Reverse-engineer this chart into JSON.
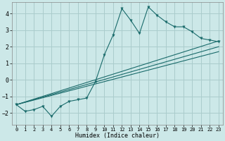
{
  "xlabel": "Humidex (Indice chaleur)",
  "ylabel": "",
  "bg_color": "#cce8e8",
  "grid_color": "#aacccc",
  "line_color": "#1a6b6b",
  "xlim": [
    -0.5,
    23.5
  ],
  "ylim": [
    -2.7,
    4.7
  ],
  "xticks": [
    0,
    1,
    2,
    3,
    4,
    5,
    6,
    7,
    8,
    9,
    10,
    11,
    12,
    13,
    14,
    15,
    16,
    17,
    18,
    19,
    20,
    21,
    22,
    23
  ],
  "yticks": [
    -2,
    -1,
    0,
    1,
    2,
    3,
    4
  ],
  "main_x": [
    0,
    1,
    2,
    3,
    4,
    5,
    6,
    7,
    8,
    9,
    10,
    11,
    12,
    13,
    14,
    15,
    16,
    17,
    18,
    19,
    20,
    21,
    22,
    23
  ],
  "main_y": [
    -1.5,
    -1.9,
    -1.8,
    -1.6,
    -2.2,
    -1.6,
    -1.3,
    -1.2,
    -1.1,
    -0.1,
    1.5,
    2.7,
    4.3,
    3.6,
    2.8,
    4.4,
    3.9,
    3.5,
    3.2,
    3.2,
    2.9,
    2.5,
    2.4,
    2.3
  ],
  "line1_x": [
    0,
    23
  ],
  "line1_y": [
    -1.5,
    2.35
  ],
  "line2_x": [
    0,
    23
  ],
  "line2_y": [
    -1.5,
    2.0
  ],
  "line3_x": [
    0,
    23
  ],
  "line3_y": [
    -1.5,
    1.7
  ]
}
